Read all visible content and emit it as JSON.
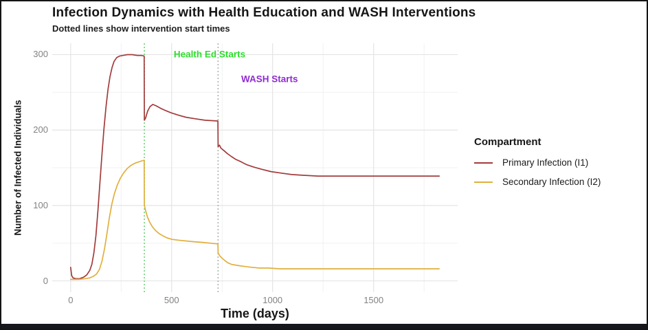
{
  "chart_data": {
    "type": "line",
    "title": "Infection Dynamics with Health Education and WASH Interventions",
    "subtitle": "Dotted lines show intervention start times",
    "xlabel": "Time (days)",
    "ylabel": "Number of Infected Individuals",
    "xlim": [
      0,
      1825
    ],
    "ylim": [
      0,
      300
    ],
    "x_ticks": [
      0,
      500,
      1000,
      1500
    ],
    "y_ticks": [
      0,
      100,
      200,
      300
    ],
    "x_minor_ticks": [
      250,
      750,
      1250,
      1750
    ],
    "y_minor_ticks": [
      50,
      150,
      250
    ],
    "grid": "on",
    "legend_position": "right",
    "legend_title": "Compartment",
    "colors": {
      "major_grid": "#e4e4e4",
      "minor_grid": "#f1f1f1",
      "panel_bg": "#ffffff"
    },
    "vlines": [
      {
        "x": 365,
        "style": "dotted",
        "color": "#63cd6f",
        "meaning": "Health Ed start"
      },
      {
        "x": 730,
        "style": "dotted",
        "color": "#a5b0a5",
        "meaning": "WASH start"
      }
    ],
    "annotations": [
      {
        "text": "Health Ed Starts",
        "x": 688,
        "y": 300,
        "color": "#2dde2d"
      },
      {
        "text": "WASH Starts",
        "x": 985,
        "y": 268,
        "color": "#8f2bd1"
      }
    ],
    "series": [
      {
        "name": "Primary Infection (I1)",
        "color": "#a23b3b",
        "points": [
          [
            0,
            18
          ],
          [
            5,
            7
          ],
          [
            12,
            4
          ],
          [
            25,
            3
          ],
          [
            45,
            3
          ],
          [
            65,
            5
          ],
          [
            80,
            8
          ],
          [
            95,
            14
          ],
          [
            105,
            22
          ],
          [
            115,
            37
          ],
          [
            125,
            60
          ],
          [
            135,
            93
          ],
          [
            145,
            130
          ],
          [
            155,
            168
          ],
          [
            165,
            202
          ],
          [
            175,
            231
          ],
          [
            185,
            254
          ],
          [
            195,
            271
          ],
          [
            205,
            283
          ],
          [
            215,
            291
          ],
          [
            228,
            296
          ],
          [
            242,
            298
          ],
          [
            260,
            299
          ],
          [
            280,
            300
          ],
          [
            305,
            300
          ],
          [
            330,
            299
          ],
          [
            350,
            299
          ],
          [
            364,
            298
          ],
          [
            365,
            213
          ],
          [
            371,
            216
          ],
          [
            381,
            225
          ],
          [
            393,
            231
          ],
          [
            407,
            234
          ],
          [
            424,
            232
          ],
          [
            444,
            229
          ],
          [
            468,
            226
          ],
          [
            496,
            223
          ],
          [
            530,
            220
          ],
          [
            570,
            217
          ],
          [
            615,
            215
          ],
          [
            665,
            213
          ],
          [
            729,
            212
          ],
          [
            730,
            178
          ],
          [
            737,
            180
          ],
          [
            744,
            176
          ],
          [
            758,
            173
          ],
          [
            775,
            169
          ],
          [
            795,
            165
          ],
          [
            818,
            161
          ],
          [
            843,
            158
          ],
          [
            872,
            154
          ],
          [
            906,
            151
          ],
          [
            945,
            148
          ],
          [
            990,
            145
          ],
          [
            1040,
            143
          ],
          [
            1095,
            141
          ],
          [
            1155,
            140
          ],
          [
            1225,
            139
          ],
          [
            1310,
            139
          ],
          [
            1420,
            139
          ],
          [
            1550,
            139
          ],
          [
            1690,
            139
          ],
          [
            1825,
            139
          ]
        ]
      },
      {
        "name": "Secondary Infection (I2)",
        "color": "#e1af3d",
        "points": [
          [
            0,
            2
          ],
          [
            40,
            2
          ],
          [
            75,
            3
          ],
          [
            95,
            4
          ],
          [
            112,
            6
          ],
          [
            128,
            9
          ],
          [
            142,
            15
          ],
          [
            155,
            26
          ],
          [
            168,
            43
          ],
          [
            180,
            63
          ],
          [
            192,
            84
          ],
          [
            204,
            102
          ],
          [
            217,
            116
          ],
          [
            231,
            127
          ],
          [
            246,
            136
          ],
          [
            262,
            143
          ],
          [
            280,
            149
          ],
          [
            298,
            153
          ],
          [
            318,
            156
          ],
          [
            340,
            158
          ],
          [
            364,
            160
          ],
          [
            365,
            100
          ],
          [
            371,
            93
          ],
          [
            380,
            85
          ],
          [
            391,
            78
          ],
          [
            404,
            72
          ],
          [
            419,
            67
          ],
          [
            436,
            63
          ],
          [
            455,
            60
          ],
          [
            477,
            57
          ],
          [
            502,
            55
          ],
          [
            532,
            54
          ],
          [
            567,
            53
          ],
          [
            607,
            52
          ],
          [
            655,
            51
          ],
          [
            729,
            49
          ],
          [
            730,
            37
          ],
          [
            739,
            33
          ],
          [
            750,
            30
          ],
          [
            763,
            27
          ],
          [
            778,
            24
          ],
          [
            795,
            22
          ],
          [
            815,
            21
          ],
          [
            838,
            20
          ],
          [
            865,
            19
          ],
          [
            897,
            18
          ],
          [
            935,
            17
          ],
          [
            980,
            17
          ],
          [
            1035,
            16
          ],
          [
            1100,
            16
          ],
          [
            1180,
            16
          ],
          [
            1280,
            16
          ],
          [
            1420,
            16
          ],
          [
            1600,
            16
          ],
          [
            1825,
            16
          ]
        ]
      }
    ]
  }
}
